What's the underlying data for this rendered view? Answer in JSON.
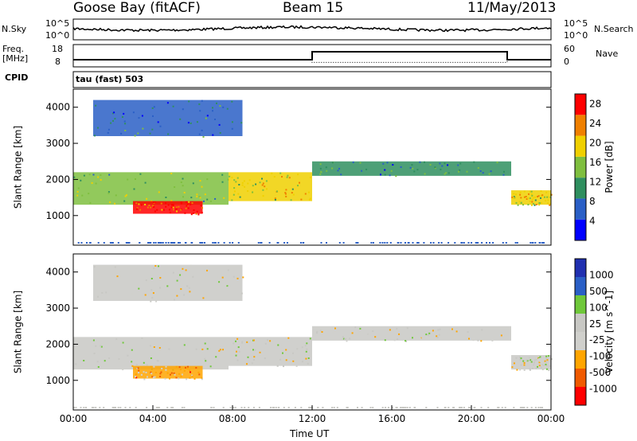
{
  "header": {
    "station": "Goose Bay (fitACF)",
    "beam": "Beam 15",
    "date": "11/May/2013"
  },
  "noise_panel": {
    "left_label": "N.Sky",
    "right_label": "N.Search",
    "left_ticks": [
      "10^5",
      "10^0"
    ],
    "right_ticks": [
      "10^5",
      "10^0"
    ]
  },
  "freq_panel": {
    "left_label_1": "Freq.",
    "left_label_2": "[MHz]",
    "right_label": "Nave",
    "left_ticks": [
      "18",
      "8"
    ],
    "right_ticks": [
      "60",
      "0"
    ],
    "freq_steps": [
      {
        "from": 0,
        "to": 12,
        "mhz": 10.5
      },
      {
        "from": 12,
        "to": 21.8,
        "mhz": 15.5
      },
      {
        "from": 21.8,
        "to": 24,
        "mhz": 10.5
      }
    ],
    "nave_steps": [
      {
        "from": 0,
        "to": 12,
        "nave": 20
      },
      {
        "from": 12,
        "to": 21.8,
        "nave": 10
      },
      {
        "from": 21.8,
        "to": 24,
        "nave": 20
      }
    ]
  },
  "cpid": {
    "label": "CPID",
    "value": "tau (fast) 503"
  },
  "chart_data": [
    {
      "type": "heatmap",
      "title": "",
      "xlabel": "",
      "ylabel": "Slant Range [km]",
      "xlim": [
        0,
        24
      ],
      "ylim": [
        180,
        4500
      ],
      "yticks": [
        "4000",
        "3000",
        "2000",
        "1000"
      ],
      "yticks_values": [
        4000,
        3000,
        2000,
        1000
      ],
      "colorbar": {
        "label": "Power [dB]",
        "ticks": [
          "28",
          "24",
          "20",
          "16",
          "12",
          "8",
          "4"
        ],
        "tick_values": [
          28,
          24,
          20,
          16,
          12,
          8,
          4
        ],
        "range": [
          0,
          30
        ],
        "colors": [
          "#0000ff",
          "#2a5fc6",
          "#2f8f5f",
          "#7fbf3f",
          "#f0d000",
          "#f08000",
          "#ff0000"
        ]
      },
      "echo_regions": [
        {
          "t0": 0.0,
          "t1": 7.8,
          "r0": 1300,
          "r1": 2200,
          "level": 14
        },
        {
          "t0": 3.0,
          "t1": 6.5,
          "r0": 1050,
          "r1": 1400,
          "level": 26
        },
        {
          "t0": 7.8,
          "t1": 12.0,
          "r0": 1400,
          "r1": 2200,
          "level": 18
        },
        {
          "t0": 12.0,
          "t1": 22.0,
          "r0": 2100,
          "r1": 2500,
          "level": 10
        },
        {
          "t0": 22.0,
          "t1": 24.0,
          "r0": 1300,
          "r1": 1700,
          "level": 18
        },
        {
          "t0": 1.0,
          "t1": 8.5,
          "r0": 3200,
          "r1": 4200,
          "level": 8
        }
      ]
    },
    {
      "type": "heatmap",
      "title": "",
      "xlabel": "Time UT",
      "ylabel": "Slant Range [km]",
      "xlim": [
        0,
        24
      ],
      "ylim": [
        180,
        4500
      ],
      "xticks": [
        "00:00",
        "04:00",
        "08:00",
        "12:00",
        "16:00",
        "20:00",
        "00:00"
      ],
      "xtick_values": [
        0,
        4,
        8,
        12,
        16,
        20,
        24
      ],
      "yticks": [
        "4000",
        "3000",
        "2000",
        "1000"
      ],
      "yticks_values": [
        4000,
        3000,
        2000,
        1000
      ],
      "colorbar": {
        "label": "Velocity [m s^-1]",
        "ticks": [
          "1000",
          "500",
          "100",
          "25",
          "-25",
          "-100",
          "-500",
          "-1000"
        ],
        "tick_values": [
          1000,
          500,
          100,
          25,
          -25,
          -100,
          -500,
          -1000
        ],
        "range": [
          -1000,
          1000
        ],
        "colors": [
          "#ff0000",
          "#f05a00",
          "#ffa500",
          "#d0d0cc",
          "#c8c8c4",
          "#6fc83a",
          "#2a5fc6",
          "#2030b0"
        ]
      },
      "echo_regions": [
        {
          "t0": 0.0,
          "t1": 7.8,
          "r0": 1300,
          "r1": 2200,
          "level": 0
        },
        {
          "t0": 3.0,
          "t1": 6.5,
          "r0": 1050,
          "r1": 1400,
          "level": -400
        },
        {
          "t0": 7.8,
          "t1": 12.0,
          "r0": 1400,
          "r1": 2200,
          "level": 0
        },
        {
          "t0": 12.0,
          "t1": 22.0,
          "r0": 2100,
          "r1": 2500,
          "level": 0
        },
        {
          "t0": 22.0,
          "t1": 24.0,
          "r0": 1300,
          "r1": 1700,
          "level": 0
        },
        {
          "t0": 1.0,
          "t1": 8.5,
          "r0": 3200,
          "r1": 4200,
          "level": 0
        }
      ]
    }
  ]
}
